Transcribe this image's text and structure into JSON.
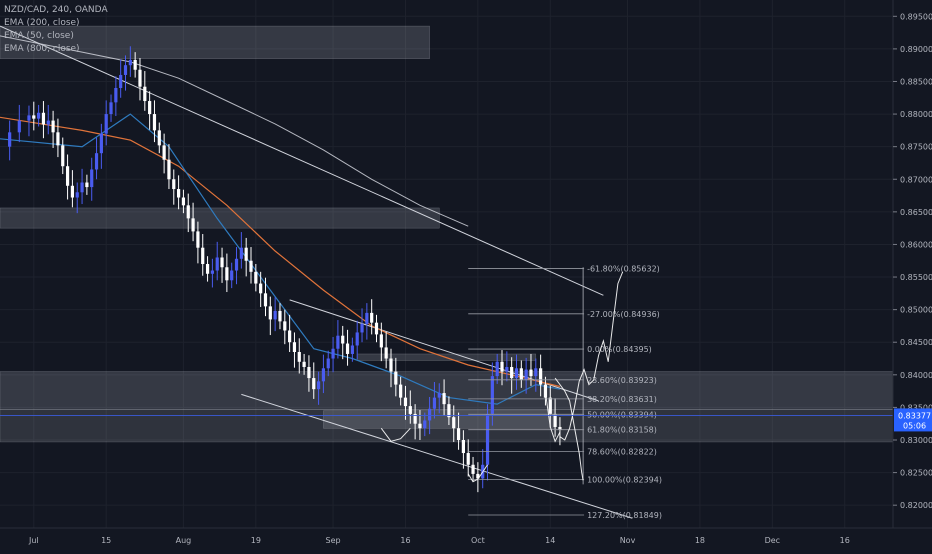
{
  "chart_data": {
    "type": "candlestick",
    "symbol_header": "NZD/CAD, 240, OANDA",
    "indicators": [
      "EMA (200, close)",
      "EMA (50, close)",
      "EMA (800, close)"
    ],
    "y_ticks": [
      0.895,
      0.89,
      0.885,
      0.88,
      0.875,
      0.87,
      0.865,
      0.86,
      0.855,
      0.85,
      0.845,
      0.84,
      0.835,
      0.83,
      0.825,
      0.82
    ],
    "y_tick_labels": [
      "0.89500",
      "0.89000",
      "0.88500",
      "0.88000",
      "0.87500",
      "0.87000",
      "0.86500",
      "0.86000",
      "0.85500",
      "0.85000",
      "0.84500",
      "0.84000",
      "0.83500",
      "0.83000",
      "0.82500",
      "0.82000"
    ],
    "x_ticks": [
      0,
      15,
      31,
      46,
      62,
      77,
      92,
      107,
      123,
      138,
      153,
      168
    ],
    "x_tick_labels": [
      "Jul",
      "15",
      "Aug",
      "19",
      "Sep",
      "16",
      "Oct",
      "14",
      "Nov",
      "18",
      "Dec",
      "16"
    ],
    "ylim": [
      0.8165,
      0.8975
    ],
    "xlim": [
      -7,
      178
    ],
    "current_price": 0.83377,
    "current_price_label": "0.83377",
    "countdown_label": "05:06",
    "fib_levels": [
      {
        "value": 0.85632,
        "label": "-61.80%(0.85632)"
      },
      {
        "value": 0.84936,
        "label": "-27.00%(0.84936)"
      },
      {
        "value": 0.84395,
        "label": "0.00%(0.84395)"
      },
      {
        "value": 0.83923,
        "label": "23.60%(0.83923)"
      },
      {
        "value": 0.83631,
        "label": "38.20%(0.83631)"
      },
      {
        "value": 0.83394,
        "label": "50.00%(0.83394)"
      },
      {
        "value": 0.83158,
        "label": "61.80%(0.83158)"
      },
      {
        "value": 0.82822,
        "label": "78.60%(0.82822)"
      },
      {
        "value": 0.82394,
        "label": "100.00%(0.82394)"
      },
      {
        "value": 0.81849,
        "label": "127.20%(0.81849)"
      }
    ],
    "price_path": [
      [
        -7,
        0.875
      ],
      [
        -5,
        0.8772
      ],
      [
        -3,
        0.879
      ],
      [
        -1,
        0.8798
      ],
      [
        0,
        0.8793
      ],
      [
        1,
        0.8802
      ],
      [
        2,
        0.8784
      ],
      [
        3,
        0.879
      ],
      [
        4,
        0.8772
      ],
      [
        5,
        0.8752
      ],
      [
        6,
        0.872
      ],
      [
        7,
        0.869
      ],
      [
        8,
        0.8672
      ],
      [
        9,
        0.868
      ],
      [
        10,
        0.8695
      ],
      [
        11,
        0.8688
      ],
      [
        12,
        0.8715
      ],
      [
        13,
        0.874
      ],
      [
        14,
        0.877
      ],
      [
        15,
        0.88
      ],
      [
        16,
        0.8818
      ],
      [
        17,
        0.884
      ],
      [
        18,
        0.886
      ],
      [
        19,
        0.8875
      ],
      [
        20,
        0.8883
      ],
      [
        21,
        0.8868
      ],
      [
        22,
        0.8842
      ],
      [
        23,
        0.882
      ],
      [
        24,
        0.88
      ],
      [
        25,
        0.8775
      ],
      [
        26,
        0.8752
      ],
      [
        27,
        0.873
      ],
      [
        28,
        0.87
      ],
      [
        29,
        0.8685
      ],
      [
        30,
        0.8672
      ],
      [
        31,
        0.866
      ],
      [
        32,
        0.864
      ],
      [
        33,
        0.862
      ],
      [
        34,
        0.8595
      ],
      [
        35,
        0.857
      ],
      [
        36,
        0.8555
      ],
      [
        37,
        0.856
      ],
      [
        38,
        0.858
      ],
      [
        39,
        0.8565
      ],
      [
        40,
        0.8545
      ],
      [
        41,
        0.856
      ],
      [
        42,
        0.8578
      ],
      [
        43,
        0.8595
      ],
      [
        44,
        0.8575
      ],
      [
        45,
        0.8558
      ],
      [
        46,
        0.854
      ],
      [
        47,
        0.8525
      ],
      [
        48,
        0.8505
      ],
      [
        49,
        0.8485
      ],
      [
        50,
        0.8498
      ],
      [
        51,
        0.8482
      ],
      [
        52,
        0.8468
      ],
      [
        53,
        0.845
      ],
      [
        54,
        0.8435
      ],
      [
        55,
        0.842
      ],
      [
        56,
        0.8412
      ],
      [
        57,
        0.8395
      ],
      [
        58,
        0.8378
      ],
      [
        59,
        0.839
      ],
      [
        60,
        0.841
      ],
      [
        61,
        0.8425
      ],
      [
        62,
        0.844
      ],
      [
        63,
        0.846
      ],
      [
        64,
        0.8448
      ],
      [
        65,
        0.8432
      ],
      [
        66,
        0.8445
      ],
      [
        67,
        0.8465
      ],
      [
        68,
        0.8478
      ],
      [
        69,
        0.8495
      ],
      [
        70,
        0.848
      ],
      [
        71,
        0.8462
      ],
      [
        72,
        0.8442
      ],
      [
        73,
        0.8425
      ],
      [
        74,
        0.8405
      ],
      [
        75,
        0.8385
      ],
      [
        76,
        0.8365
      ],
      [
        77,
        0.8352
      ],
      [
        78,
        0.834
      ],
      [
        79,
        0.8325
      ],
      [
        80,
        0.8318
      ],
      [
        81,
        0.833
      ],
      [
        82,
        0.8348
      ],
      [
        83,
        0.8365
      ],
      [
        84,
        0.8372
      ],
      [
        85,
        0.8355
      ],
      [
        86,
        0.8335
      ],
      [
        87,
        0.8318
      ],
      [
        88,
        0.83
      ],
      [
        89,
        0.828
      ],
      [
        90,
        0.8262
      ],
      [
        91,
        0.8248
      ],
      [
        92,
        0.8241
      ],
      [
        93,
        0.8262
      ],
      [
        94,
        0.834
      ],
      [
        95,
        0.8398
      ],
      [
        96,
        0.842
      ],
      [
        97,
        0.8405
      ],
      [
        98,
        0.8412
      ],
      [
        99,
        0.8395
      ],
      [
        100,
        0.841
      ],
      [
        101,
        0.8392
      ],
      [
        102,
        0.8408
      ],
      [
        103,
        0.8398
      ],
      [
        104,
        0.841
      ],
      [
        105,
        0.8385
      ],
      [
        106,
        0.8365
      ],
      [
        107,
        0.834
      ],
      [
        108,
        0.832
      ],
      [
        109,
        0.8316
      ]
    ],
    "ema50_path": [
      [
        -7,
        0.8762
      ],
      [
        10,
        0.875
      ],
      [
        20,
        0.88
      ],
      [
        28,
        0.875
      ],
      [
        38,
        0.864
      ],
      [
        48,
        0.854
      ],
      [
        58,
        0.844
      ],
      [
        66,
        0.8425
      ],
      [
        76,
        0.8398
      ],
      [
        86,
        0.8365
      ],
      [
        96,
        0.8355
      ],
      [
        104,
        0.8385
      ],
      [
        109,
        0.8378
      ]
    ],
    "ema200_path": [
      [
        -7,
        0.8795
      ],
      [
        10,
        0.8775
      ],
      [
        20,
        0.876
      ],
      [
        30,
        0.872
      ],
      [
        40,
        0.866
      ],
      [
        50,
        0.859
      ],
      [
        60,
        0.853
      ],
      [
        70,
        0.8475
      ],
      [
        80,
        0.844
      ],
      [
        90,
        0.8415
      ],
      [
        100,
        0.8398
      ],
      [
        109,
        0.8382
      ]
    ],
    "ema800_path": [
      [
        -7,
        0.892
      ],
      [
        10,
        0.8895
      ],
      [
        20,
        0.888
      ],
      [
        30,
        0.8855
      ],
      [
        40,
        0.882
      ],
      [
        50,
        0.8785
      ],
      [
        60,
        0.8745
      ],
      [
        70,
        0.87
      ],
      [
        80,
        0.866
      ],
      [
        90,
        0.8628
      ]
    ],
    "trendlines": [
      {
        "x1": -7,
        "y1": 0.8935,
        "x2": 118,
        "y2": 0.8522
      },
      {
        "x1": 53,
        "y1": 0.8515,
        "x2": 117,
        "y2": 0.836
      },
      {
        "x1": 43,
        "y1": 0.837,
        "x2": 124,
        "y2": 0.818
      }
    ],
    "zones": [
      {
        "x1": -7,
        "x2": 82,
        "y_top": 0.8935,
        "y_bottom": 0.8885
      },
      {
        "x1": -7,
        "x2": 84,
        "y_top": 0.8656,
        "y_bottom": 0.8625
      },
      {
        "x1": -7,
        "x2": 178,
        "y_top": 0.8405,
        "y_bottom": 0.8347
      },
      {
        "x1": -7,
        "x2": 178,
        "y_top": 0.8347,
        "y_bottom": 0.8297
      },
      {
        "x1": 60,
        "x2": 108,
        "y_top": 0.8345,
        "y_bottom": 0.8318
      },
      {
        "x1": 67,
        "x2": 104,
        "y_top": 0.8432,
        "y_bottom": 0.8422
      }
    ],
    "fib_x_range": [
      90,
      114
    ],
    "projection_paths": [
      [
        [
          109,
          0.8305
        ],
        [
          110,
          0.83
        ],
        [
          111,
          0.8318
        ],
        [
          112,
          0.835
        ],
        [
          113,
          0.839
        ],
        [
          114,
          0.8408
        ],
        [
          115,
          0.8385
        ],
        [
          116,
          0.8392
        ],
        [
          117,
          0.843
        ],
        [
          118,
          0.8452
        ],
        [
          119,
          0.842
        ],
        [
          120,
          0.848
        ],
        [
          121,
          0.854
        ],
        [
          122,
          0.8558
        ]
      ],
      [
        [
          106,
          0.8372
        ],
        [
          107,
          0.832
        ],
        [
          108,
          0.8298
        ],
        [
          109,
          0.8312
        ]
      ],
      [
        [
          108,
          0.8395
        ],
        [
          110,
          0.8375
        ],
        [
          111,
          0.836
        ],
        [
          112,
          0.832
        ],
        [
          113,
          0.828
        ],
        [
          113.5,
          0.825
        ],
        [
          113.8,
          0.8238
        ]
      ],
      [
        [
          72,
          0.8318
        ],
        [
          74,
          0.8298
        ],
        [
          76,
          0.8302
        ],
        [
          78,
          0.8318
        ]
      ],
      [
        [
          90,
          0.8248
        ],
        [
          91,
          0.8236
        ],
        [
          92,
          0.824
        ],
        [
          94,
          0.8262
        ]
      ]
    ]
  }
}
